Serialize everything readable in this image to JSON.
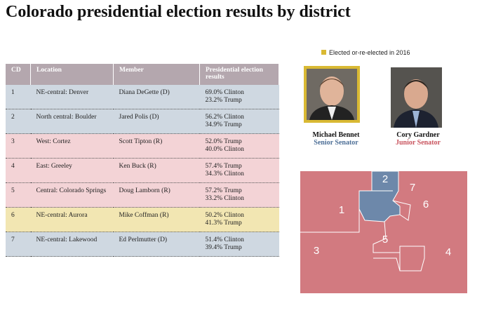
{
  "title": "Colorado presidential election results by district",
  "legend": "Elected or-re-elected in 2016",
  "table": {
    "header": [
      "CD",
      "Location",
      "Member",
      "Presidential election results"
    ],
    "rows": [
      {
        "cells": [
          "1",
          "NE-central: Denver",
          "Diana DeGette (D)"
        ],
        "results": [
          "69.0% Clinton",
          "23.2% Trump"
        ],
        "color": "#cfd8e1"
      },
      {
        "cells": [
          "2",
          "North central: Boulder",
          "Jared Polis (D)"
        ],
        "results": [
          "56.2% Clinton",
          "34.9% Trump"
        ],
        "color": "#cfd8e1"
      },
      {
        "cells": [
          "3",
          "West: Cortez",
          "Scott Tipton (R)"
        ],
        "results": [
          "52.0% Trump",
          "40.0% Clinton"
        ],
        "color": "#f3d3d6"
      },
      {
        "cells": [
          "4",
          "East: Greeley",
          "Ken Buck (R)"
        ],
        "results": [
          "57.4% Trump",
          "34.3% Clinton"
        ],
        "color": "#f3d3d6"
      },
      {
        "cells": [
          "5",
          "Central: Colorado Springs",
          "Doug Lamborn (R)"
        ],
        "results": [
          "57.2% Trump",
          "33.2% Clinton"
        ],
        "color": "#f3d3d6"
      },
      {
        "cells": [
          "6",
          "NE-central: Aurora",
          "Mike Coffman (R)"
        ],
        "results": [
          "50.2% Clinton",
          "41.3% Trump"
        ],
        "color": "#f2e6b2"
      },
      {
        "cells": [
          "7",
          "NE-central: Lakewood",
          "Ed Perlmutter (D)"
        ],
        "results": [
          "51.4% Clinton",
          "39.4% Trump"
        ],
        "color": "#cfd8e1"
      }
    ]
  },
  "senators": [
    {
      "name": "Michael Bennet",
      "role": "Senior Senator",
      "color": "#4d6f97"
    },
    {
      "name": "Cory Gardner",
      "role": "Junior Senator",
      "color": "#c9545e"
    }
  ],
  "map": {
    "labels": [
      "1",
      "2",
      "3",
      "4",
      "5",
      "6",
      "7"
    ]
  }
}
